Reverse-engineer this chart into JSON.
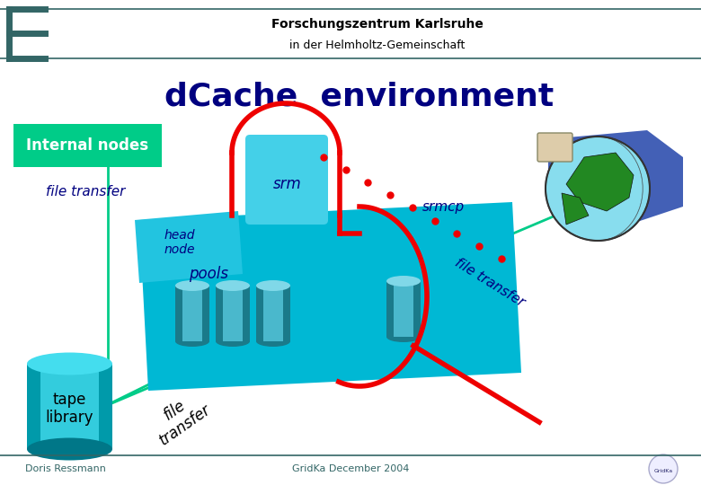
{
  "bg_color": "#ffffff",
  "header_line_color": "#336666",
  "header_title": "Forschungszentrum Karlsruhe",
  "header_subtitle": "in der Helmholtz-Gemeinschaft",
  "header_bracket_color": "#336666",
  "main_title": "dCache  environment",
  "main_title_color": "#000080",
  "main_title_fontsize": 26,
  "internal_nodes_box_color": "#00cc88",
  "internal_nodes_text": "Internal nodes",
  "internal_nodes_text_color": "#ffffff",
  "file_transfer_label": "file transfer",
  "label_color": "#000080",
  "head_node_label": "head\nnode",
  "srm_label": "srm",
  "pools_label": "pools",
  "srmcp_label": "srmcp",
  "tape_library_label": "tape\nlibrary",
  "cyan_body_color": "#00b8d4",
  "cyan_head_color": "#22c4e0",
  "cyan_srm_color": "#44d0e8",
  "red_curve_color": "#ee0000",
  "teal_line_color": "#00cc88",
  "dot_color": "#ee0000",
  "footer_left": "Doris Ressmann",
  "footer_center": "GridKa December 2004",
  "footer_color": "#336666",
  "footer_line_color": "#336666",
  "disk_colors": [
    "#006080",
    "#007090",
    "#0090a0"
  ]
}
